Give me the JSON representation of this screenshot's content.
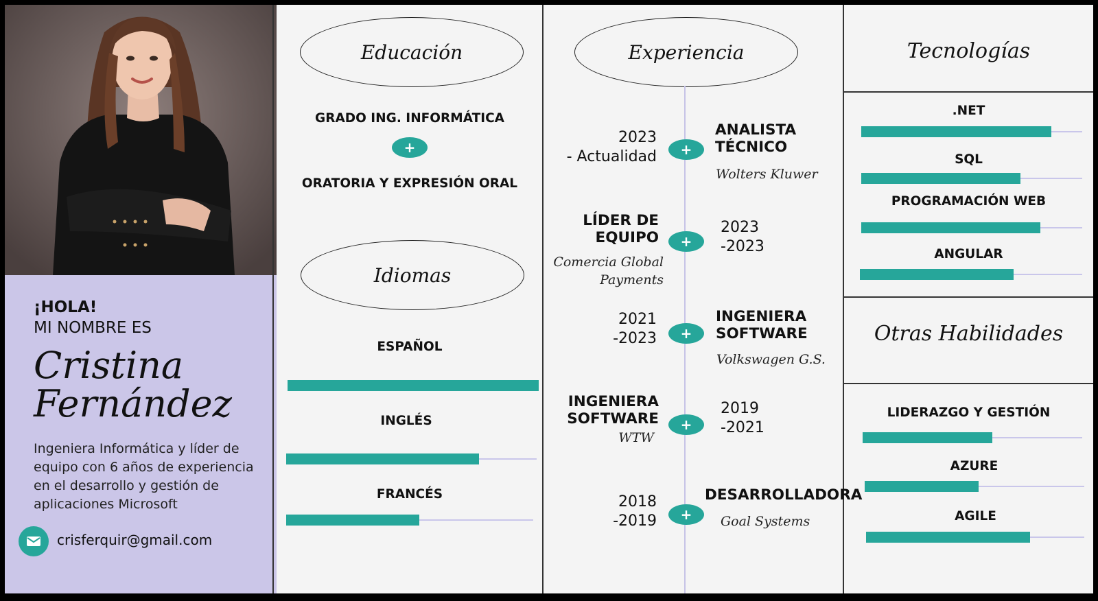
{
  "profile": {
    "greeting": "¡HOLA!",
    "intro": "MI NOMBRE ES",
    "first_name": "Cristina",
    "last_name": "Fernández",
    "bio": "Ingeniera Informática y líder de equipo con 6 años de experiencia en el desarrollo y gestión de aplicaciones Microsoft",
    "email": "crisferquir@gmail.com"
  },
  "education": {
    "title": "Educación",
    "items": [
      "GRADO ING. INFORMÁTICA",
      "ORATORIA Y EXPRESIÓN ORAL"
    ],
    "plus": "+"
  },
  "languages": {
    "title": "Idiomas",
    "items": [
      {
        "name": "ESPAÑOL",
        "level": 1.0
      },
      {
        "name": "INGLÉS",
        "level": 0.77
      },
      {
        "name": "FRANCÉS",
        "level": 0.54
      }
    ]
  },
  "experience": {
    "title": "Experiencia",
    "plus": "+",
    "items": [
      {
        "date": "2023\n- Actualidad",
        "role": "ANALISTA\nTÉCNICO",
        "company": "Wolters Kluwer"
      },
      {
        "date": "2023\n-2023",
        "role": "LÍDER DE\nEQUIPO",
        "company": "Comercia Global\nPayments"
      },
      {
        "date": "2021\n-2023",
        "role": "INGENIERA\nSOFTWARE",
        "company": "Volkswagen G.S."
      },
      {
        "date": "2019\n-2021",
        "role": "INGENIERA\nSOFTWARE",
        "company": "WTW"
      },
      {
        "date": "2018\n-2019",
        "role": "DESARROLLADORA",
        "company": "Goal Systems"
      }
    ]
  },
  "technologies": {
    "title": "Tecnologías",
    "items": [
      {
        "name": ".NET",
        "level": 0.86
      },
      {
        "name": "SQL",
        "level": 0.72
      },
      {
        "name": "PROGRAMACIÓN WEB",
        "level": 0.81
      },
      {
        "name": "ANGULAR",
        "level": 0.69
      }
    ]
  },
  "other_skills": {
    "title": "Otras Habilidades",
    "items": [
      {
        "name": "LIDERAZGO Y GESTIÓN",
        "level": 0.59
      },
      {
        "name": "AZURE",
        "level": 0.52
      },
      {
        "name": "AGILE",
        "level": 0.75
      }
    ]
  },
  "colors": {
    "accent": "#26a69a",
    "lavender": "#cbc6e8",
    "track": "#c9c6ea"
  },
  "icons": {
    "email": "mail-icon",
    "portrait": "profile-photo"
  }
}
